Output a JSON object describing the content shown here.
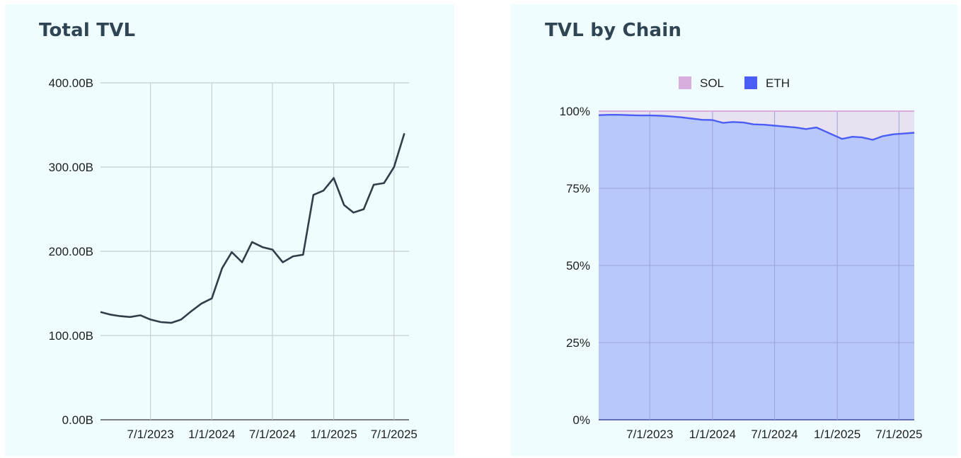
{
  "colors": {
    "panel_bg": "#f0fdfe",
    "title": "#2f4553",
    "line_total": "#2f3e48",
    "grid_left": "#c7d0d3",
    "eth": "#4a5ef5",
    "eth_fill": "#b9c8fa",
    "sol": "#d7aede",
    "sol_fill": "#e8e1f2",
    "grid_right": "#9ea7d6"
  },
  "chart_data": [
    {
      "type": "line",
      "title": "Total TVL",
      "xlabel": "",
      "ylabel": "",
      "x_ticks": [
        "7/1/2023",
        "1/1/2024",
        "7/1/2024",
        "1/1/2025",
        "7/1/2025"
      ],
      "y_ticks": [
        "0.00B",
        "100.00B",
        "200.00B",
        "300.00B",
        "400.00B"
      ],
      "ylim": [
        0,
        400
      ],
      "xlim": [
        "2023-02-01",
        "2025-08-15"
      ],
      "grid": true,
      "series": [
        {
          "x": [
            "2023-02-01",
            "2023-03-01",
            "2023-04-01",
            "2023-05-01",
            "2023-06-01",
            "2023-07-01",
            "2023-08-01",
            "2023-09-01",
            "2023-10-01",
            "2023-11-01",
            "2023-12-01",
            "2024-01-01",
            "2024-02-01",
            "2024-03-01",
            "2024-04-01",
            "2024-05-01",
            "2024-06-01",
            "2024-07-01",
            "2024-08-01",
            "2024-09-01",
            "2024-10-01",
            "2024-11-01",
            "2024-12-01",
            "2025-01-01",
            "2025-02-01",
            "2025-03-01",
            "2025-04-01",
            "2025-05-01",
            "2025-06-01",
            "2025-07-01",
            "2025-08-01"
          ],
          "values": [
            128,
            125,
            123,
            122,
            124,
            119,
            116,
            115,
            119,
            129,
            138,
            144,
            180,
            199,
            187,
            211,
            205,
            202,
            187,
            194,
            196,
            267,
            272,
            287,
            255,
            246,
            250,
            279,
            281,
            300,
            340
          ]
        }
      ]
    },
    {
      "type": "area",
      "title": "TVL by Chain",
      "stacked": "percent",
      "legend_position": "top",
      "x_ticks": [
        "7/1/2023",
        "1/1/2024",
        "7/1/2024",
        "1/1/2025",
        "7/1/2025"
      ],
      "y_ticks": [
        "0%",
        "25%",
        "50%",
        "75%",
        "100%"
      ],
      "ylim": [
        0,
        100
      ],
      "xlim": [
        "2023-02-01",
        "2025-08-15"
      ],
      "grid": true,
      "series": [
        {
          "name": "SOL",
          "values": [
            1.3,
            1.2,
            1.2,
            1.3,
            1.4,
            1.4,
            1.5,
            1.7,
            2.0,
            2.4,
            2.8,
            2.9,
            3.8,
            3.5,
            3.7,
            4.3,
            4.4,
            4.7,
            5.0,
            5.3,
            5.8,
            5.3,
            9.0,
            8.3,
            8.5,
            9.3,
            8.1,
            7.5,
            7.0
          ]
        },
        {
          "name": "ETH",
          "values": [
            98.7,
            98.8,
            98.8,
            98.7,
            98.6,
            98.6,
            98.5,
            98.3,
            98.0,
            97.6,
            97.2,
            97.1,
            96.2,
            96.5,
            96.3,
            95.7,
            95.6,
            95.3,
            95.0,
            94.7,
            94.2,
            94.7,
            91.0,
            91.7,
            91.5,
            90.7,
            91.9,
            92.5,
            93.0
          ]
        }
      ],
      "x": [
        "2023-02-01",
        "2023-03-01",
        "2023-04-01",
        "2023-05-01",
        "2023-06-01",
        "2023-07-01",
        "2023-08-01",
        "2023-09-01",
        "2023-10-01",
        "2023-11-01",
        "2023-12-01",
        "2024-01-01",
        "2024-02-01",
        "2024-03-01",
        "2024-04-01",
        "2024-05-01",
        "2024-06-01",
        "2024-07-01",
        "2024-08-01",
        "2024-09-01",
        "2024-10-01",
        "2024-11-01",
        "2025-01-15",
        "2025-02-15",
        "2025-03-15",
        "2025-04-15",
        "2025-05-15",
        "2025-06-15",
        "2025-08-15"
      ]
    }
  ]
}
